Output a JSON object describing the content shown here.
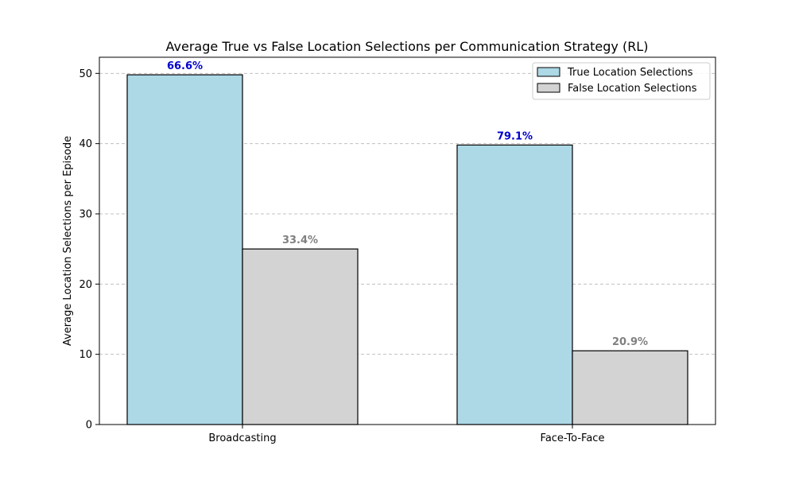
{
  "chart_data": {
    "type": "bar",
    "title": "Average True vs False Location Selections per Communication Strategy (RL)",
    "xlabel": "",
    "ylabel": "Average Location Selections per Episode",
    "categories": [
      "Broadcasting",
      "Face-To-Face"
    ],
    "ylim": [
      0,
      52.3
    ],
    "yticks": [
      0,
      10,
      20,
      30,
      40,
      50
    ],
    "grid": "y-dashed",
    "legend_position": "top-right",
    "series": [
      {
        "name": "True Location Selections",
        "values": [
          49.8,
          39.8
        ],
        "labels": [
          "66.6%",
          "79.1%"
        ],
        "color": "#add8e6",
        "label_color": "#0000cc"
      },
      {
        "name": "False Location Selections",
        "values": [
          25.0,
          10.5
        ],
        "labels": [
          "33.4%",
          "20.9%"
        ],
        "color": "#d3d3d3",
        "label_color": "#808080"
      }
    ]
  }
}
